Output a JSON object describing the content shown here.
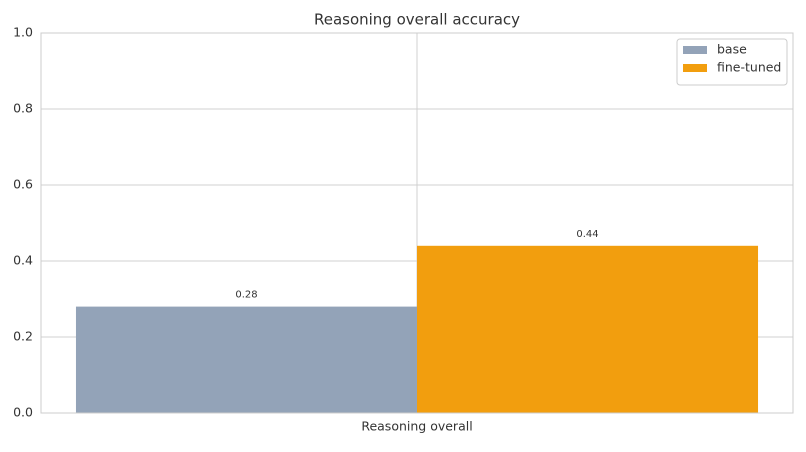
{
  "chart_data": {
    "type": "bar",
    "title": "Reasoning overall accuracy",
    "categories": [
      "Reasoning overall"
    ],
    "series": [
      {
        "name": "base",
        "color": "#93a3b8",
        "values": [
          0.28
        ]
      },
      {
        "name": "fine-tuned",
        "color": "#f29e0e",
        "values": [
          0.44
        ]
      }
    ],
    "ylim": [
      0,
      1
    ],
    "yticks": [
      {
        "value": 0,
        "label": "0.0"
      },
      0.2,
      0.4,
      0.6,
      0.8,
      {
        "value": 1,
        "label": "1.0"
      }
    ],
    "grid": true,
    "legend": "upper right"
  }
}
